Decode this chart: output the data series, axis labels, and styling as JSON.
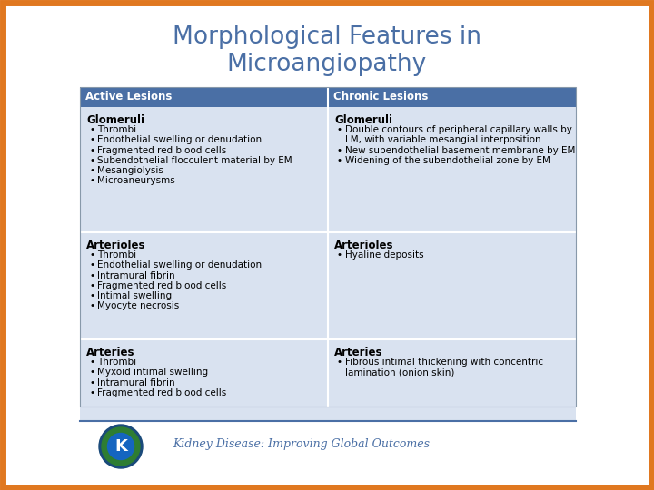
{
  "title_line1": "Morphological Features in",
  "title_line2": "Microangiopathy",
  "title_color": "#4a6fa5",
  "title_fontsize": 19,
  "border_color": "#e07820",
  "border_lw": 5,
  "header_bg": "#4a6fa5",
  "header_text_color": "#ffffff",
  "header_fontsize": 8.5,
  "row_bg": "#d9e2f0",
  "section_header_fontsize": 8.5,
  "bullet_fontsize": 7.5,
  "col_headers": [
    "Active Lesions",
    "Chronic Lesions"
  ],
  "footer_line_color": "#4a6fa5",
  "footer_text": "Kidney Disease: Improving Global Outcomes",
  "footer_text_color": "#4a6fa5",
  "active_sections": [
    {
      "header": "Glomeruli",
      "bullets": [
        "Thrombi",
        "Endothelial swelling or denudation",
        "Fragmented red blood cells",
        "Subendothelial flocculent material by EM",
        "Mesangiolysis",
        "Microaneurysms"
      ]
    },
    {
      "header": "Arterioles",
      "bullets": [
        "Thrombi",
        "Endothelial swelling or denudation",
        "Intramural fibrin",
        "Fragmented red blood cells",
        "Intimal swelling",
        "Myocyte necrosis"
      ]
    },
    {
      "header": "Arteries",
      "bullets": [
        "Thrombi",
        "Myxoid intimal swelling",
        "Intramural fibrin",
        "Fragmented red blood cells"
      ]
    }
  ],
  "chronic_sections": [
    {
      "header": "Glomeruli",
      "bullets": [
        "Double contours of peripheral capillary walls by LM, with variable mesangial interposition",
        "New subendothelial basement membrane by EM",
        "Widening of the subendothelial zone by EM"
      ]
    },
    {
      "header": "Arterioles",
      "bullets": [
        "Hyaline deposits"
      ]
    },
    {
      "header": "Arteries",
      "bullets": [
        "Fibrous intimal thickening with concentric lamination (onion skin)"
      ]
    }
  ]
}
